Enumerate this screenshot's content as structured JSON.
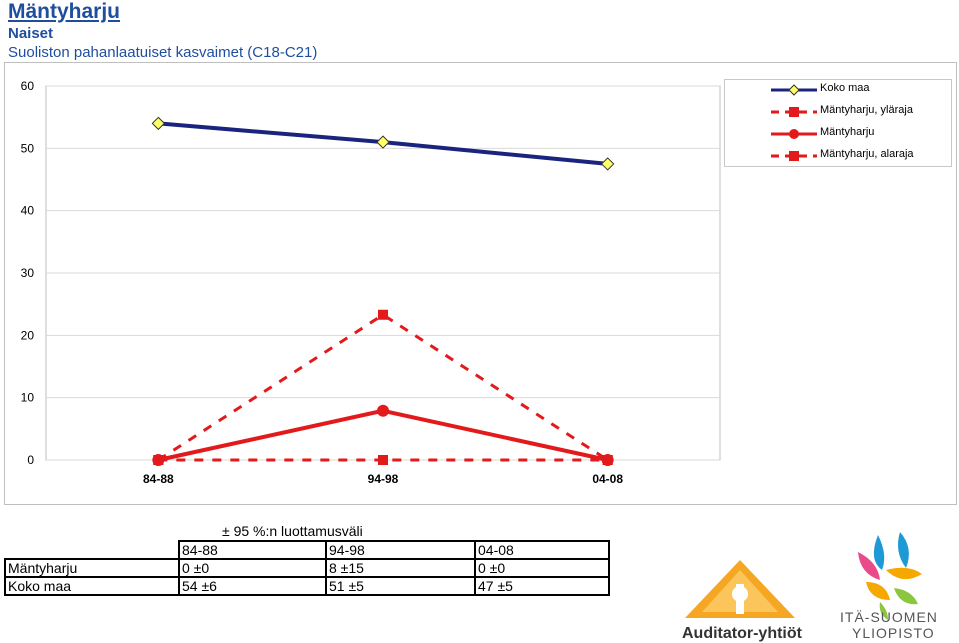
{
  "header": {
    "title": "Mäntyharju",
    "subtitle": "Naiset",
    "description": "Suoliston pahanlaatuiset kasvaimet (C18-C21)"
  },
  "chart_data": {
    "type": "line",
    "categories": [
      "84-88",
      "94-98",
      "04-08"
    ],
    "ylim": [
      0,
      60
    ],
    "yticks": [
      0,
      10,
      20,
      30,
      40,
      50,
      60
    ],
    "grid": true,
    "legend_position": "top-right",
    "series": [
      {
        "name": "Koko maa",
        "values": [
          54,
          51,
          47.5
        ],
        "color": "#1a237e",
        "marker": "diamond",
        "style": "solid"
      },
      {
        "name": "Mäntyharju, yläraja",
        "values": [
          0,
          23.3,
          0
        ],
        "color": "#e31a1c",
        "marker": "square",
        "style": "dashed"
      },
      {
        "name": "Mäntyharju",
        "values": [
          0,
          7.9,
          0
        ],
        "color": "#e31a1c",
        "marker": "circle",
        "style": "solid"
      },
      {
        "name": "Mäntyharju, alaraja",
        "values": [
          0,
          0,
          0
        ],
        "color": "#e31a1c",
        "marker": "square",
        "style": "dashed"
      }
    ]
  },
  "ci_table": {
    "title": "± 95 %:n luottamusväli",
    "headers": [
      "84-88",
      "94-98",
      "04-08"
    ],
    "rows": [
      {
        "label": "Mäntyharju",
        "values": [
          "0 ±0",
          "8 ±15",
          "0 ±0"
        ]
      },
      {
        "label": "Koko maa",
        "values": [
          "54 ±6",
          "51 ±5",
          "47 ±5"
        ]
      }
    ]
  },
  "logos": {
    "auditor_text": "Auditator-yhtiöt",
    "uef_line1": "ITÄ-SUOMEN",
    "uef_line2": "YLIOPISTO"
  }
}
